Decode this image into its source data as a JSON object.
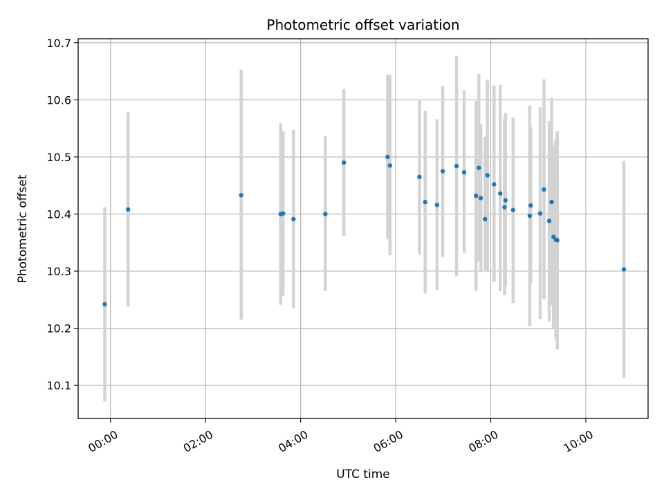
{
  "chart_data": {
    "type": "scatter",
    "title": "Photometric offset variation",
    "xlabel": "UTC time",
    "ylabel": "Photometric offset",
    "x_unit": "hours UTC",
    "xlim": [
      -0.68,
      11.31
    ],
    "ylim": [
      10.042,
      10.707
    ],
    "grid": true,
    "marker_color": "#1f77b4",
    "errorbar_color": "#d3d3d3",
    "x_ticks": [
      {
        "value": 0,
        "label": "00:00"
      },
      {
        "value": 2,
        "label": "02:00"
      },
      {
        "value": 4,
        "label": "04:00"
      },
      {
        "value": 6,
        "label": "06:00"
      },
      {
        "value": 8,
        "label": "08:00"
      },
      {
        "value": 10,
        "label": "10:00"
      }
    ],
    "y_ticks": [
      {
        "value": 10.1,
        "label": "10.1"
      },
      {
        "value": 10.2,
        "label": "10.2"
      },
      {
        "value": 10.3,
        "label": "10.3"
      },
      {
        "value": 10.4,
        "label": "10.4"
      },
      {
        "value": 10.5,
        "label": "10.5"
      },
      {
        "value": 10.6,
        "label": "10.6"
      },
      {
        "value": 10.7,
        "label": "10.7"
      }
    ],
    "points": [
      {
        "x": -0.12,
        "y": 10.242,
        "ylo": 10.072,
        "yhi": 10.412
      },
      {
        "x": 0.37,
        "y": 10.408,
        "ylo": 10.238,
        "yhi": 10.578
      },
      {
        "x": 2.75,
        "y": 10.433,
        "ylo": 10.215,
        "yhi": 10.653
      },
      {
        "x": 3.58,
        "y": 10.4,
        "ylo": 10.241,
        "yhi": 10.559
      },
      {
        "x": 3.63,
        "y": 10.401,
        "ylo": 10.257,
        "yhi": 10.545
      },
      {
        "x": 3.85,
        "y": 10.391,
        "ylo": 10.235,
        "yhi": 10.547
      },
      {
        "x": 4.52,
        "y": 10.4,
        "ylo": 10.265,
        "yhi": 10.536
      },
      {
        "x": 4.91,
        "y": 10.49,
        "ylo": 10.362,
        "yhi": 10.619
      },
      {
        "x": 5.83,
        "y": 10.5,
        "ylo": 10.356,
        "yhi": 10.644
      },
      {
        "x": 5.88,
        "y": 10.485,
        "ylo": 10.328,
        "yhi": 10.644
      },
      {
        "x": 6.5,
        "y": 10.465,
        "ylo": 10.329,
        "yhi": 10.601
      },
      {
        "x": 6.62,
        "y": 10.421,
        "ylo": 10.261,
        "yhi": 10.581
      },
      {
        "x": 6.87,
        "y": 10.416,
        "ylo": 10.267,
        "yhi": 10.566
      },
      {
        "x": 6.99,
        "y": 10.475,
        "ylo": 10.325,
        "yhi": 10.624
      },
      {
        "x": 7.28,
        "y": 10.484,
        "ylo": 10.291,
        "yhi": 10.677
      },
      {
        "x": 7.44,
        "y": 10.473,
        "ylo": 10.332,
        "yhi": 10.617
      },
      {
        "x": 7.69,
        "y": 10.432,
        "ylo": 10.265,
        "yhi": 10.598
      },
      {
        "x": 7.75,
        "y": 10.481,
        "ylo": 10.317,
        "yhi": 10.645
      },
      {
        "x": 7.79,
        "y": 10.428,
        "ylo": 10.298,
        "yhi": 10.557
      },
      {
        "x": 7.88,
        "y": 10.391,
        "ylo": 10.302,
        "yhi": 10.535
      },
      {
        "x": 7.93,
        "y": 10.468,
        "ylo": 10.301,
        "yhi": 10.635
      },
      {
        "x": 8.07,
        "y": 10.452,
        "ylo": 10.281,
        "yhi": 10.625
      },
      {
        "x": 8.2,
        "y": 10.436,
        "ylo": 10.265,
        "yhi": 10.626
      },
      {
        "x": 8.29,
        "y": 10.412,
        "ylo": 10.258,
        "yhi": 10.568
      },
      {
        "x": 8.31,
        "y": 10.424,
        "ylo": 10.273,
        "yhi": 10.577
      },
      {
        "x": 8.47,
        "y": 10.407,
        "ylo": 10.244,
        "yhi": 10.569
      },
      {
        "x": 8.82,
        "y": 10.397,
        "ylo": 10.204,
        "yhi": 10.59
      },
      {
        "x": 8.84,
        "y": 10.415,
        "ylo": 10.279,
        "yhi": 10.552
      },
      {
        "x": 9.04,
        "y": 10.401,
        "ylo": 10.216,
        "yhi": 10.587
      },
      {
        "x": 9.12,
        "y": 10.443,
        "ylo": 10.251,
        "yhi": 10.636
      },
      {
        "x": 9.23,
        "y": 10.388,
        "ylo": 10.212,
        "yhi": 10.563
      },
      {
        "x": 9.28,
        "y": 10.421,
        "ylo": 10.24,
        "yhi": 10.604
      },
      {
        "x": 9.32,
        "y": 10.36,
        "ylo": 10.201,
        "yhi": 10.521
      },
      {
        "x": 9.37,
        "y": 10.355,
        "ylo": 10.181,
        "yhi": 10.531
      },
      {
        "x": 9.4,
        "y": 10.354,
        "ylo": 10.163,
        "yhi": 10.545
      },
      {
        "x": 10.8,
        "y": 10.303,
        "ylo": 10.113,
        "yhi": 10.493
      }
    ]
  }
}
